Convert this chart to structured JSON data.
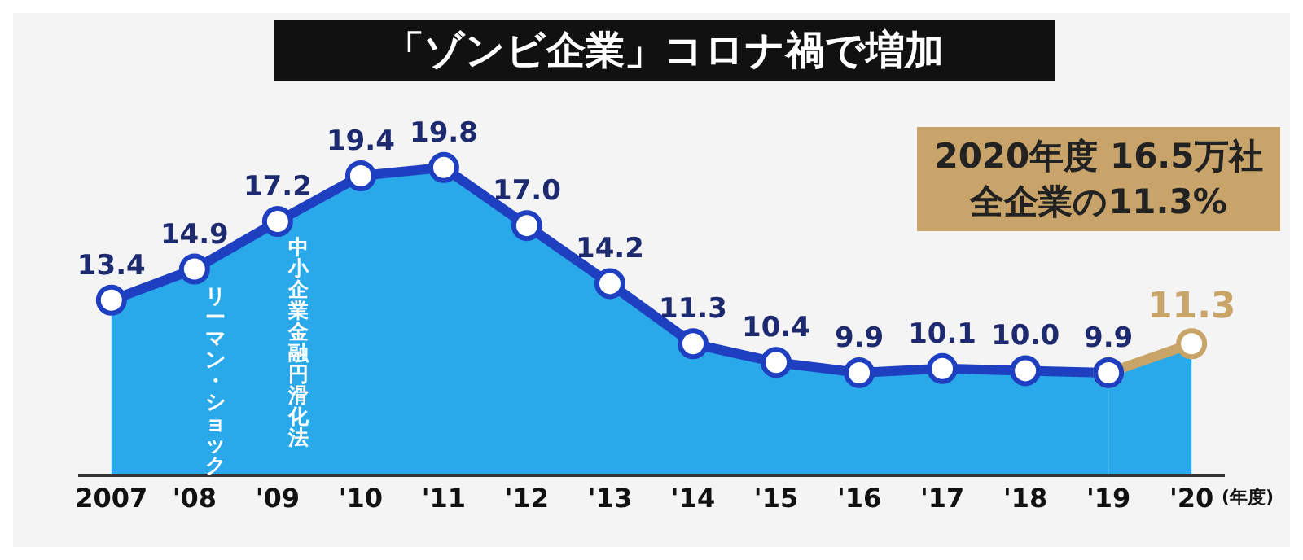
{
  "chart_data": {
    "type": "area",
    "title": "「ゾンビ企業」コロナ禍で増加",
    "xlabel": "(年度)",
    "categories": [
      "2007",
      "'08",
      "'09",
      "'10",
      "'11",
      "'12",
      "'13",
      "'14",
      "'15",
      "'16",
      "'17",
      "'18",
      "'19",
      "'20"
    ],
    "tick_labels": "x",
    "grid": false,
    "legend": false,
    "marker": "circle",
    "line_style": "solid",
    "series": [
      {
        "color": "#1e3fc0",
        "values": [
          13.4,
          14.9,
          17.2,
          19.4,
          19.8,
          17.0,
          14.2,
          11.3,
          10.4,
          9.9,
          10.1,
          10.0,
          9.9,
          null
        ],
        "value_labels": [
          "13.4",
          "14.9",
          "17.2",
          "19.4",
          "19.8",
          "17.0",
          "14.2",
          "11.3",
          "10.4",
          "9.9",
          "10.1",
          "10.0",
          null,
          null
        ]
      },
      {
        "color": "#c8a468",
        "values": [
          null,
          null,
          null,
          null,
          null,
          null,
          null,
          null,
          null,
          null,
          null,
          null,
          9.9,
          11.3
        ],
        "value_labels": [
          null,
          null,
          null,
          null,
          null,
          null,
          null,
          null,
          null,
          null,
          null,
          null,
          "9.9",
          "11.3"
        ]
      }
    ],
    "annotations": [
      "リーマン・ショック",
      "中小企業金融円滑化法",
      "2020年度 16.5万社",
      "全企業の11.3%"
    ]
  }
}
